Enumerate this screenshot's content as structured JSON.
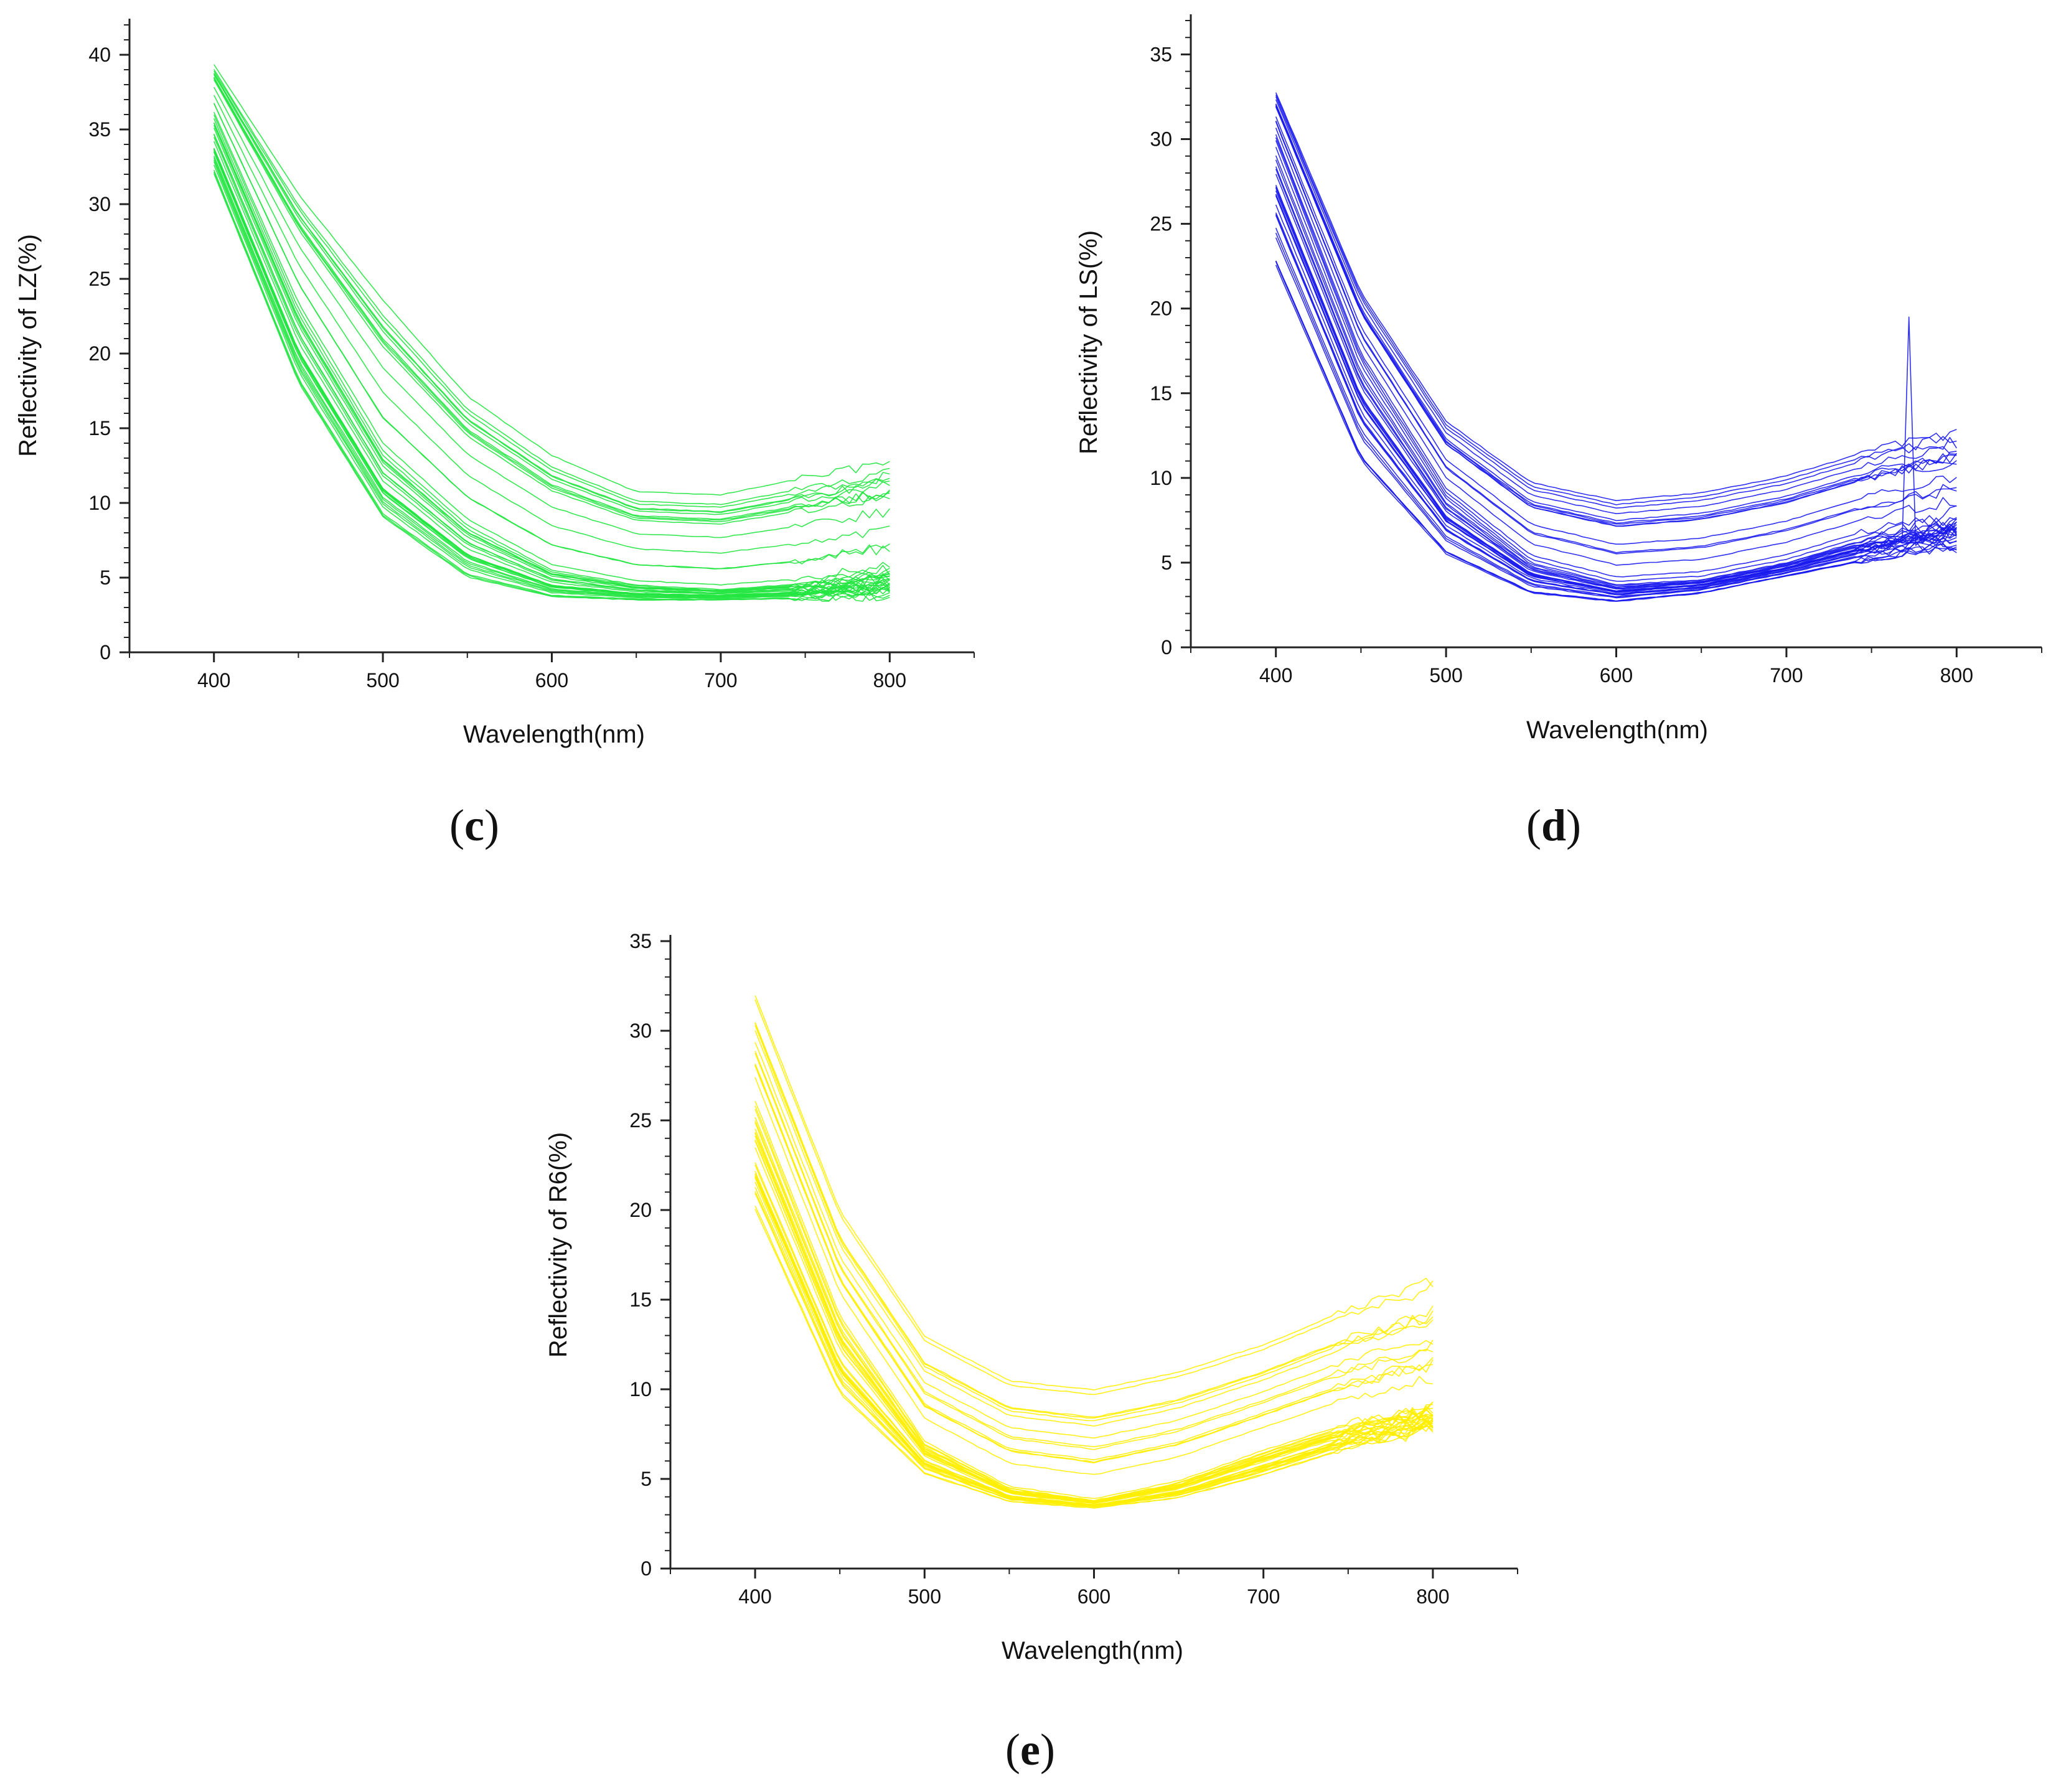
{
  "figure": {
    "panels": [
      "c",
      "d",
      "e"
    ]
  },
  "chart_data": [
    {
      "id": "c",
      "type": "line",
      "panel_label": "c",
      "xlabel": "Wavelength(nm)",
      "ylabel": "Reflectivity of LZ(%)",
      "xlim": [
        350,
        850
      ],
      "ylim": [
        0,
        42
      ],
      "xticks": [
        400,
        500,
        600,
        700,
        800
      ],
      "yticks": [
        0,
        5,
        10,
        15,
        20,
        25,
        30,
        35,
        40
      ],
      "color": "#22e640",
      "series_count": 40,
      "x": [
        400,
        450,
        500,
        550,
        600,
        650,
        700,
        750,
        800
      ],
      "series_envelope": [
        {
          "name": "lower",
          "values": [
            32,
            18,
            9,
            5,
            3.7,
            3.5,
            3.5,
            3.6,
            3.8
          ]
        },
        {
          "name": "typical",
          "values": [
            36,
            23,
            13.5,
            8.5,
            5.5,
            4.5,
            4.2,
            4.6,
            5.5
          ]
        },
        {
          "name": "upper",
          "values": [
            39.5,
            31,
            24,
            17.5,
            13.5,
            11,
            10.8,
            12,
            13
          ]
        }
      ]
    },
    {
      "id": "d",
      "type": "line",
      "panel_label": "d",
      "xlabel": "Wavelength(nm)",
      "ylabel": "Reflectivity of LS(%)",
      "xlim": [
        350,
        850
      ],
      "ylim": [
        0,
        37
      ],
      "xticks": [
        400,
        500,
        600,
        700,
        800
      ],
      "yticks": [
        0,
        5,
        10,
        15,
        20,
        25,
        30,
        35
      ],
      "color": "#1a1aee",
      "series_count": 40,
      "x": [
        400,
        450,
        500,
        550,
        600,
        650,
        700,
        750,
        800
      ],
      "series_envelope": [
        {
          "name": "lower",
          "values": [
            22.5,
            11,
            5.5,
            3.2,
            2.7,
            3.2,
            4.2,
            5.2,
            6
          ]
        },
        {
          "name": "typical",
          "values": [
            30,
            17,
            9,
            5,
            3.7,
            4,
            5,
            6.5,
            7.5
          ]
        },
        {
          "name": "upper",
          "values": [
            33.5,
            22,
            14.5,
            11,
            10,
            10.5,
            11.5,
            13,
            14
          ]
        }
      ],
      "annotations": [
        {
          "x": 772,
          "y": 19.5,
          "note": "spike"
        }
      ]
    },
    {
      "id": "e",
      "type": "line",
      "panel_label": "e",
      "xlabel": "Wavelength(nm)",
      "ylabel": "Reflectivity of R6(%)",
      "xlim": [
        350,
        850
      ],
      "ylim": [
        0,
        35
      ],
      "xticks": [
        400,
        500,
        600,
        700,
        800
      ],
      "yticks": [
        0,
        5,
        10,
        15,
        20,
        25,
        30,
        35
      ],
      "color": "#ffee00",
      "series_count": 40,
      "x": [
        400,
        450,
        500,
        550,
        600,
        650,
        700,
        750,
        800
      ],
      "series_envelope": [
        {
          "name": "lower",
          "values": [
            19,
            9,
            5,
            3.6,
            3.3,
            3.8,
            5,
            6.5,
            7.5
          ]
        },
        {
          "name": "typical",
          "values": [
            26,
            14,
            7,
            4.5,
            3.8,
            4.8,
            6.5,
            8,
            9
          ]
        },
        {
          "name": "upper",
          "values": [
            32,
            20,
            13,
            10.5,
            10,
            11,
            12.5,
            14.5,
            16
          ]
        }
      ]
    }
  ]
}
